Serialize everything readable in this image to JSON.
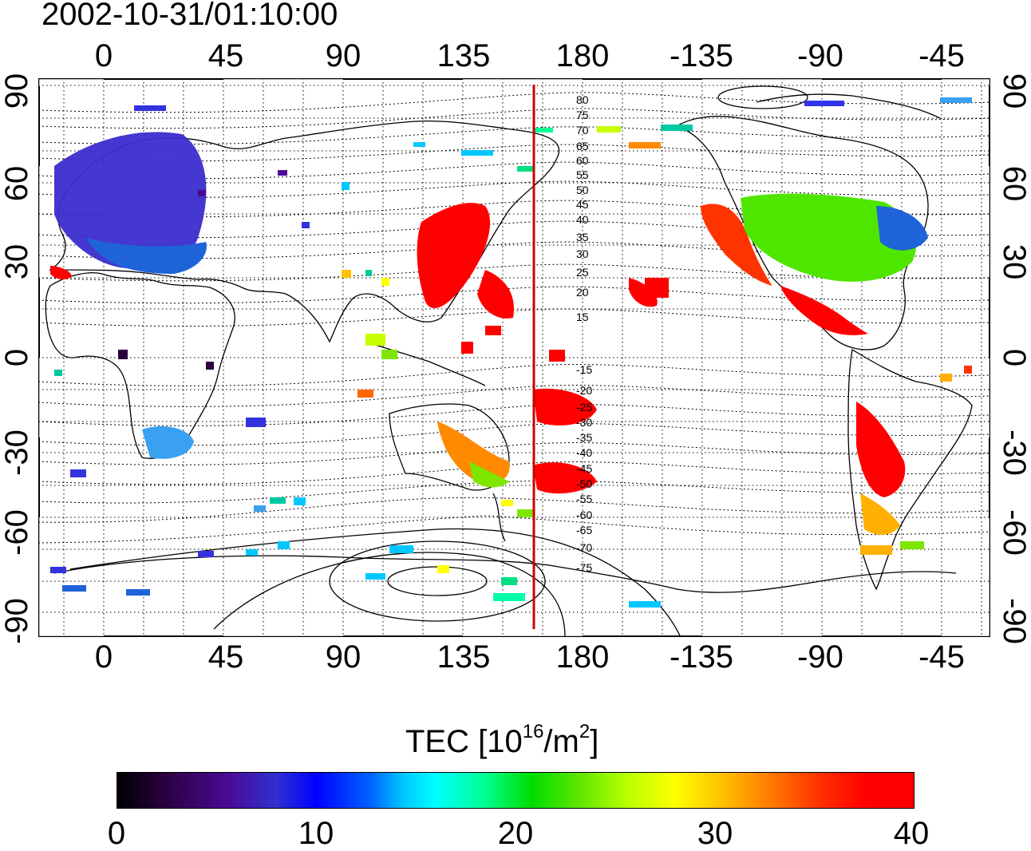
{
  "title": "2002-10-31/01:10:00",
  "lon_ticks": [
    "0",
    "45",
    "90",
    "135",
    "180",
    "-135",
    "-90",
    "-45"
  ],
  "lat_ticks": [
    "90",
    "60",
    "30",
    "0",
    "-30",
    "-60",
    "-90"
  ],
  "mlat_labels": [
    "80",
    "75",
    "70",
    "65",
    "60",
    "55",
    "50",
    "45",
    "40",
    "35",
    "30",
    "25",
    "20",
    "15",
    "-15",
    "-20",
    "-25",
    "-30",
    "-35",
    "-40",
    "-45",
    "-50",
    "-55",
    "-60",
    "-65",
    "-70",
    "-75"
  ],
  "colorbar": {
    "title_prefix": "TEC  [10",
    "title_exp1": "16",
    "title_mid": "/m",
    "title_exp2": "2",
    "title_suffix": "]",
    "tick_labels": [
      "0",
      "10",
      "20",
      "30",
      "40"
    ],
    "range": [
      0,
      40
    ],
    "colors": [
      "#000000",
      "#0000ff",
      "#00ffff",
      "#00dd00",
      "#ffff00",
      "#ff7a00",
      "#ff0000"
    ]
  },
  "map": {
    "lon_range": [
      -12,
      217
    ],
    "lat_range": [
      -90,
      90
    ],
    "terminator_line_color": "#cc0000",
    "grid": "dotted"
  }
}
